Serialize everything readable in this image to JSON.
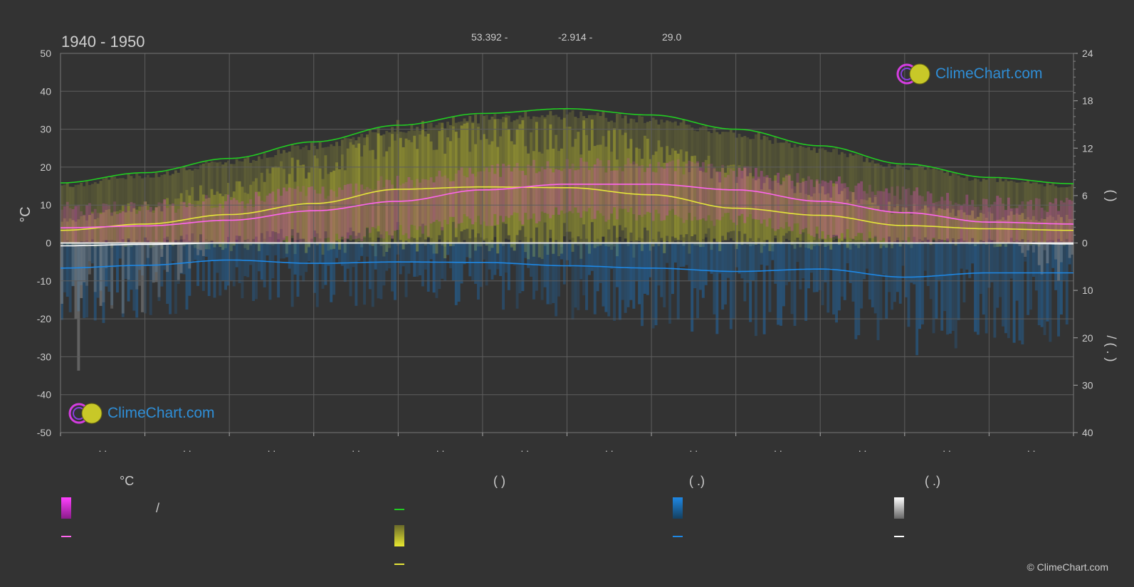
{
  "header": {
    "period": "1940 - 1950",
    "lat": "53.392 -",
    "lon": "-2.914 -",
    "elevation": "29.0"
  },
  "logo": {
    "text": "ClimeChart.com"
  },
  "copyright": "© ClimeChart.com",
  "legend": {
    "temp_head": "°C",
    "sun_head": "(          )",
    "rain_head": "(   .)",
    "snow_head": "(   .)",
    "slash": "/"
  },
  "colors": {
    "background": "#333333",
    "daylight": "#22cc22",
    "sunshine_mean": "#e6e63a",
    "temp_mean": "#ff66ee",
    "rain": "#1e88e5",
    "snow": "#ffffff"
  },
  "chart_data": {
    "type": "line",
    "title": "1940 - 1950",
    "ylabel_left": "°C",
    "ylim_left": [
      -50,
      50
    ],
    "yticks_left": [
      50,
      40,
      30,
      20,
      10,
      0,
      -10,
      -20,
      -30,
      -40,
      -50
    ],
    "ylim_right_top": [
      0,
      24
    ],
    "yticks_right_top": [
      24,
      18,
      12,
      6,
      0
    ],
    "ylim_right_bottom": [
      0,
      40
    ],
    "yticks_right_bottom": [
      10,
      20,
      30,
      40
    ],
    "right_label_top": "(      )",
    "right_label_bottom": "/     ( . )",
    "x_tick_labels": [
      ". .",
      ". .",
      ". .",
      ". .",
      ". .",
      ". .",
      ". .",
      ". .",
      ". .",
      ". .",
      ". .",
      ". ."
    ],
    "grid": true,
    "x": [
      0,
      1,
      2,
      3,
      4,
      5,
      6,
      7,
      8,
      9,
      10,
      11,
      12
    ],
    "series": [
      {
        "key": "daylight_hours",
        "axis": "right_top",
        "values": [
          7.6,
          8.9,
          10.7,
          12.8,
          14.9,
          16.4,
          17.0,
          16.2,
          14.4,
          12.3,
          10.0,
          8.3,
          7.5
        ]
      },
      {
        "key": "sunshine_hours",
        "axis": "right_top",
        "values": [
          1.6,
          2.4,
          3.6,
          5.0,
          6.8,
          7.1,
          7.0,
          6.1,
          4.4,
          3.5,
          2.2,
          1.8,
          1.6
        ]
      },
      {
        "key": "temp_mean_c",
        "axis": "left",
        "values": [
          4.0,
          4.5,
          6.0,
          8.5,
          11.0,
          14.0,
          15.5,
          15.5,
          14.0,
          11.0,
          8.0,
          5.5,
          5.0
        ]
      },
      {
        "key": "rain_mm",
        "axis": "right_bottom",
        "values": [
          5.3,
          4.7,
          3.6,
          4.3,
          4.0,
          4.1,
          4.8,
          5.3,
          6.0,
          5.5,
          7.2,
          6.3,
          6.3
        ]
      },
      {
        "key": "snow_mm",
        "axis": "right_bottom",
        "values": [
          0.6,
          0.3,
          0.0,
          0.0,
          0.0,
          0.0,
          0.0,
          0.0,
          0.0,
          0.0,
          0.0,
          0.0,
          0.2
        ]
      }
    ]
  }
}
